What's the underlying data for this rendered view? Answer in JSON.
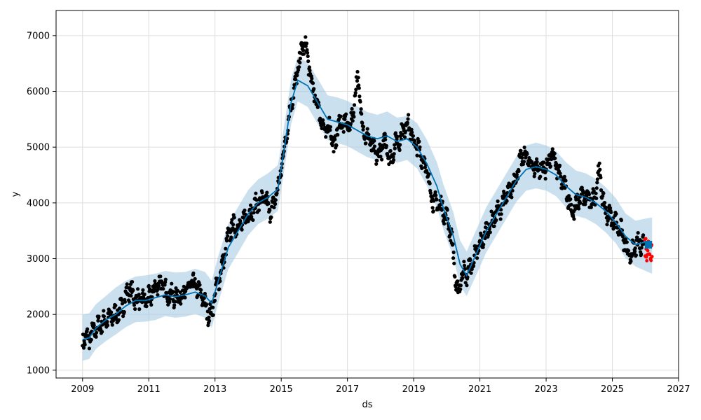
{
  "chart_data": {
    "type": "scatter",
    "xlabel": "ds",
    "ylabel": "y",
    "xlim": [
      2008.2,
      2027.0
    ],
    "ylim": [
      860,
      7450
    ],
    "xticks": [
      2009,
      2011,
      2013,
      2015,
      2017,
      2019,
      2021,
      2023,
      2025,
      2027
    ],
    "yticks": [
      1000,
      2000,
      3000,
      4000,
      5000,
      6000,
      7000
    ],
    "grid": true,
    "colors": {
      "observed": "#000000",
      "forecast_points": "#ff0000",
      "trend_line": "#0072b2",
      "uncertainty_band": "#a6cbe3"
    },
    "series": [
      {
        "kind": "forecast-line",
        "x": [
          2009.0,
          2009.2,
          2009.4,
          2009.7,
          2010.0,
          2010.3,
          2010.6,
          2010.9,
          2011.2,
          2011.5,
          2011.8,
          2012.1,
          2012.4,
          2012.7,
          2012.9,
          2013.1,
          2013.4,
          2013.7,
          2014.0,
          2014.3,
          2014.6,
          2014.9,
          2015.1,
          2015.3,
          2015.5,
          2015.8,
          2016.1,
          2016.4,
          2016.7,
          2017.0,
          2017.3,
          2017.6,
          2017.9,
          2018.2,
          2018.5,
          2018.8,
          2019.1,
          2019.4,
          2019.7,
          2019.9,
          2020.2,
          2020.4,
          2020.6,
          2020.9,
          2021.2,
          2021.5,
          2021.8,
          2022.1,
          2022.4,
          2022.7,
          2023.0,
          2023.3,
          2023.6,
          2023.9,
          2024.2,
          2024.5,
          2024.8,
          2025.1,
          2025.4,
          2025.7,
          2026.0,
          2026.2
        ],
        "y": [
          1550,
          1580,
          1750,
          1900,
          2000,
          2150,
          2250,
          2250,
          2300,
          2350,
          2320,
          2350,
          2400,
          2330,
          2200,
          2600,
          3200,
          3500,
          3800,
          4000,
          4100,
          4250,
          5000,
          5800,
          6200,
          6100,
          5800,
          5500,
          5450,
          5400,
          5300,
          5200,
          5150,
          5200,
          5100,
          5150,
          5000,
          4700,
          4300,
          3900,
          3400,
          2900,
          2700,
          3100,
          3500,
          3800,
          4100,
          4400,
          4600,
          4650,
          4600,
          4500,
          4300,
          4150,
          4100,
          4000,
          3850,
          3650,
          3400,
          3250,
          3300,
          3250
        ]
      },
      {
        "kind": "uncertainty-band",
        "x": [
          2009.0,
          2009.2,
          2009.4,
          2009.7,
          2010.0,
          2010.3,
          2010.6,
          2010.9,
          2011.2,
          2011.5,
          2011.8,
          2012.1,
          2012.4,
          2012.7,
          2012.9,
          2013.1,
          2013.4,
          2013.7,
          2014.0,
          2014.3,
          2014.6,
          2014.9,
          2015.1,
          2015.3,
          2015.5,
          2015.8,
          2016.1,
          2016.4,
          2016.7,
          2017.0,
          2017.3,
          2017.6,
          2017.9,
          2018.2,
          2018.5,
          2018.8,
          2019.1,
          2019.4,
          2019.7,
          2019.9,
          2020.2,
          2020.4,
          2020.6,
          2020.9,
          2021.2,
          2021.5,
          2021.8,
          2022.1,
          2022.4,
          2022.7,
          2023.0,
          2023.3,
          2023.6,
          2023.9,
          2024.2,
          2024.5,
          2024.8,
          2025.1,
          2025.4,
          2025.7,
          2026.0,
          2026.2
        ],
        "lower": [
          1170,
          1200,
          1380,
          1520,
          1640,
          1770,
          1860,
          1870,
          1900,
          1970,
          1940,
          1960,
          2010,
          1940,
          1760,
          2210,
          2810,
          3110,
          3420,
          3620,
          3720,
          3860,
          4620,
          5420,
          5820,
          5720,
          5420,
          5130,
          5070,
          5020,
          4920,
          4820,
          4760,
          4820,
          4720,
          4770,
          4620,
          4310,
          3920,
          3520,
          3020,
          2520,
          2330,
          2720,
          3120,
          3420,
          3720,
          4020,
          4220,
          4260,
          4220,
          4120,
          3920,
          3770,
          3720,
          3620,
          3470,
          3280,
          3010,
          2860,
          2780,
          2730
        ],
        "upper": [
          2000,
          2020,
          2180,
          2330,
          2480,
          2600,
          2680,
          2700,
          2730,
          2780,
          2750,
          2760,
          2820,
          2760,
          2600,
          3050,
          3620,
          3930,
          4230,
          4420,
          4530,
          4680,
          5430,
          6230,
          6620,
          6520,
          6230,
          5930,
          5890,
          5830,
          5730,
          5630,
          5580,
          5640,
          5530,
          5560,
          5430,
          5130,
          4730,
          4330,
          3830,
          3330,
          3130,
          3530,
          3930,
          4230,
          4530,
          4830,
          5030,
          5080,
          5030,
          4930,
          4730,
          4580,
          4530,
          4430,
          4280,
          4090,
          3810,
          3680,
          3720,
          3740
        ]
      }
    ]
  }
}
